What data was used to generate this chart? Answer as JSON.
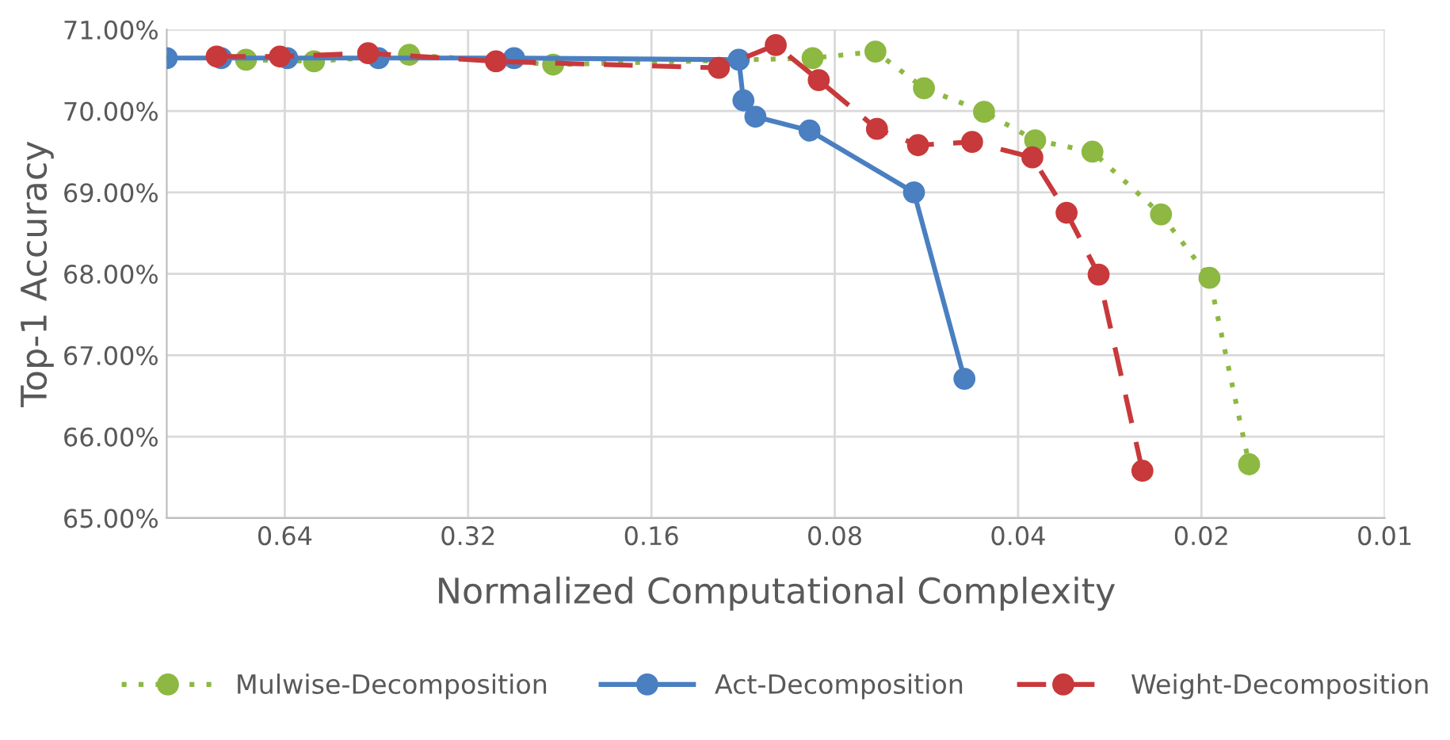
{
  "chart_data": {
    "type": "line",
    "xlabel": "Normalized Computational Complexity",
    "ylabel": "Top-1 Accuracy",
    "log": "x",
    "xlim": [
      1,
      0.01
    ],
    "xticks": [
      0.64,
      0.32,
      0.16,
      0.08,
      0.04,
      0.02,
      0.01
    ],
    "ylim": [
      65,
      71
    ],
    "yticks": [
      {
        "value": 65,
        "label": "65.00%"
      },
      {
        "value": 66,
        "label": "66.00%"
      },
      {
        "value": 67,
        "label": "67.00%"
      },
      {
        "value": 68,
        "label": "68.00%"
      },
      {
        "value": 69,
        "label": "69.00%"
      },
      {
        "value": 70,
        "label": "70.00%"
      },
      {
        "value": 71,
        "label": "71.00%"
      }
    ],
    "grid": true,
    "legend": "bottom",
    "marker": "circle",
    "series": [
      {
        "name": "Mulwise-Decomposition",
        "color": "#8db842",
        "line_style": "dotted",
        "x": [
          0.741,
          0.573,
          0.4,
          0.232,
          0.087,
          0.0686,
          0.0571,
          0.0455,
          0.0375,
          0.0302,
          0.0233,
          0.0194,
          0.0167
        ],
        "values": [
          70.63,
          70.61,
          70.69,
          70.57,
          70.65,
          70.73,
          70.28,
          69.99,
          69.64,
          69.5,
          68.73,
          67.95,
          65.66
        ]
      },
      {
        "name": "Act-Decomposition",
        "color": "#4a7fc1",
        "line_style": "solid",
        "x": [
          1.0,
          0.814,
          0.634,
          0.449,
          0.269,
          0.115,
          0.113,
          0.108,
          0.088,
          0.0593,
          0.049
        ],
        "values": [
          70.65,
          70.65,
          70.65,
          70.65,
          70.65,
          70.63,
          70.13,
          69.93,
          69.76,
          69.0,
          66.71
        ]
      },
      {
        "name": "Weight-Decomposition",
        "color": "#c8393b",
        "line_style": "dashed",
        "x": [
          0.828,
          0.652,
          0.467,
          0.288,
          0.124,
          0.1,
          0.085,
          0.0682,
          0.0584,
          0.0476,
          0.0379,
          0.0333,
          0.0295,
          0.025
        ],
        "values": [
          70.67,
          70.67,
          70.71,
          70.61,
          70.53,
          70.81,
          70.38,
          69.78,
          69.58,
          69.62,
          69.43,
          68.75,
          67.99,
          65.58
        ]
      }
    ]
  }
}
